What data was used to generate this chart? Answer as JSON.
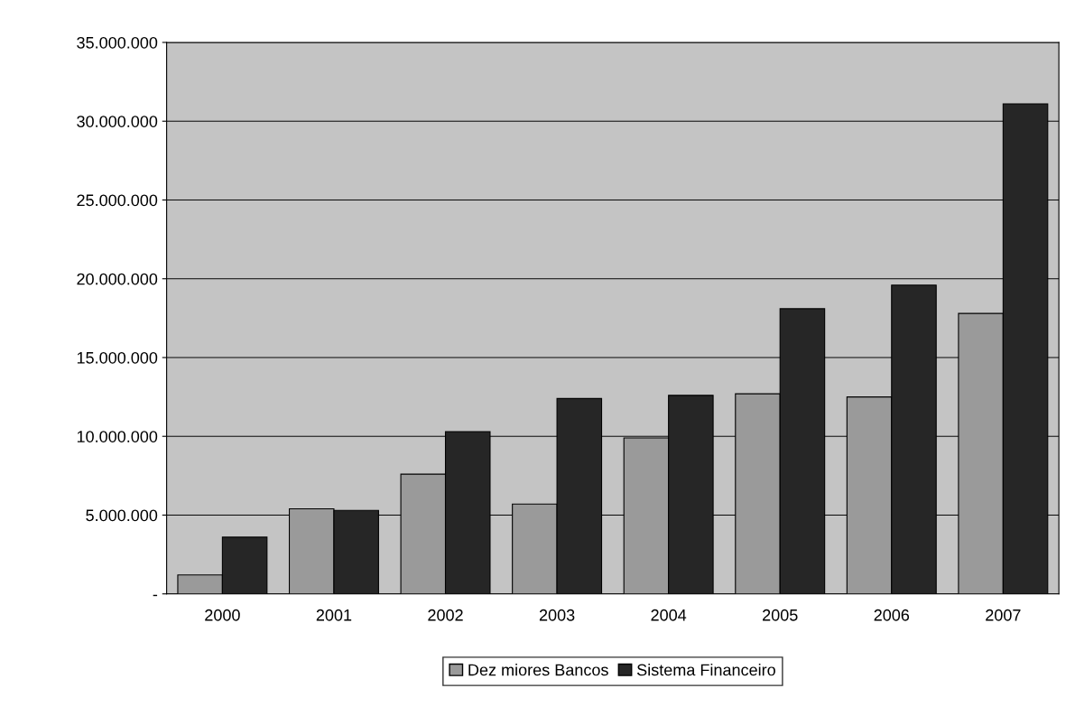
{
  "chart_data": {
    "type": "bar",
    "categories": [
      "2000",
      "2001",
      "2002",
      "2003",
      "2004",
      "2005",
      "2006",
      "2007"
    ],
    "series": [
      {
        "name": "Dez miores Bancos",
        "color": "#9a9a9a",
        "values": [
          1200000,
          5400000,
          7600000,
          5700000,
          9900000,
          12700000,
          12500000,
          17800000
        ]
      },
      {
        "name": "Sistema Financeiro",
        "color": "#262626",
        "values": [
          3600000,
          5300000,
          10300000,
          12400000,
          12600000,
          18100000,
          19600000,
          31100000
        ]
      }
    ],
    "ylim": [
      0,
      35000000
    ],
    "yticks": [
      {
        "value": 0,
        "label": "-"
      },
      {
        "value": 5000000,
        "label": "5.000.000"
      },
      {
        "value": 10000000,
        "label": "10.000.000"
      },
      {
        "value": 15000000,
        "label": "15.000.000"
      },
      {
        "value": 20000000,
        "label": "20.000.000"
      },
      {
        "value": 25000000,
        "label": "25.000.000"
      },
      {
        "value": 30000000,
        "label": "30.000.000"
      },
      {
        "value": 35000000,
        "label": "35.000.000"
      }
    ],
    "grid": "y",
    "legend": "bottom"
  }
}
